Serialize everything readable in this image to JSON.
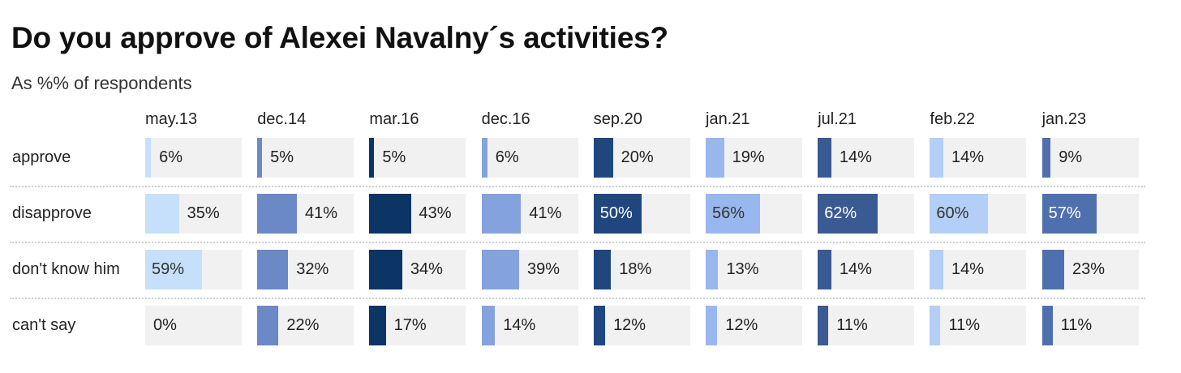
{
  "title": "Do you approve of Alexei Navalny´s activities?",
  "subtitle": "As %% of respondents",
  "chart_data": {
    "type": "bar",
    "title": "Do you approve of Alexei Navalny´s activities?",
    "subtitle": "As %% of respondents",
    "layout": "small-multiples",
    "xlim": [
      0,
      100
    ],
    "columns": [
      "may.13",
      "dec.14",
      "mar.16",
      "dec.16",
      "sep.20",
      "jan.21",
      "jul.21",
      "feb.22",
      "jan.23"
    ],
    "column_colors": [
      "#c6e0fb",
      "#6b88c7",
      "#0c3566",
      "#84a3de",
      "#1f467f",
      "#98b7ef",
      "#3a5a93",
      "#b4cff7",
      "#4e70ae"
    ],
    "rows": [
      {
        "label": "approve",
        "values": [
          6,
          5,
          5,
          6,
          20,
          19,
          14,
          14,
          9
        ]
      },
      {
        "label": "disapprove",
        "values": [
          35,
          41,
          43,
          41,
          50,
          56,
          62,
          60,
          57
        ]
      },
      {
        "label": "don't know him",
        "values": [
          59,
          32,
          34,
          39,
          18,
          13,
          14,
          14,
          23
        ]
      },
      {
        "label": "can't say",
        "values": [
          0,
          22,
          17,
          14,
          12,
          12,
          11,
          11,
          11
        ]
      }
    ],
    "value_suffix": "%",
    "track_color": "#f1f1f1"
  }
}
